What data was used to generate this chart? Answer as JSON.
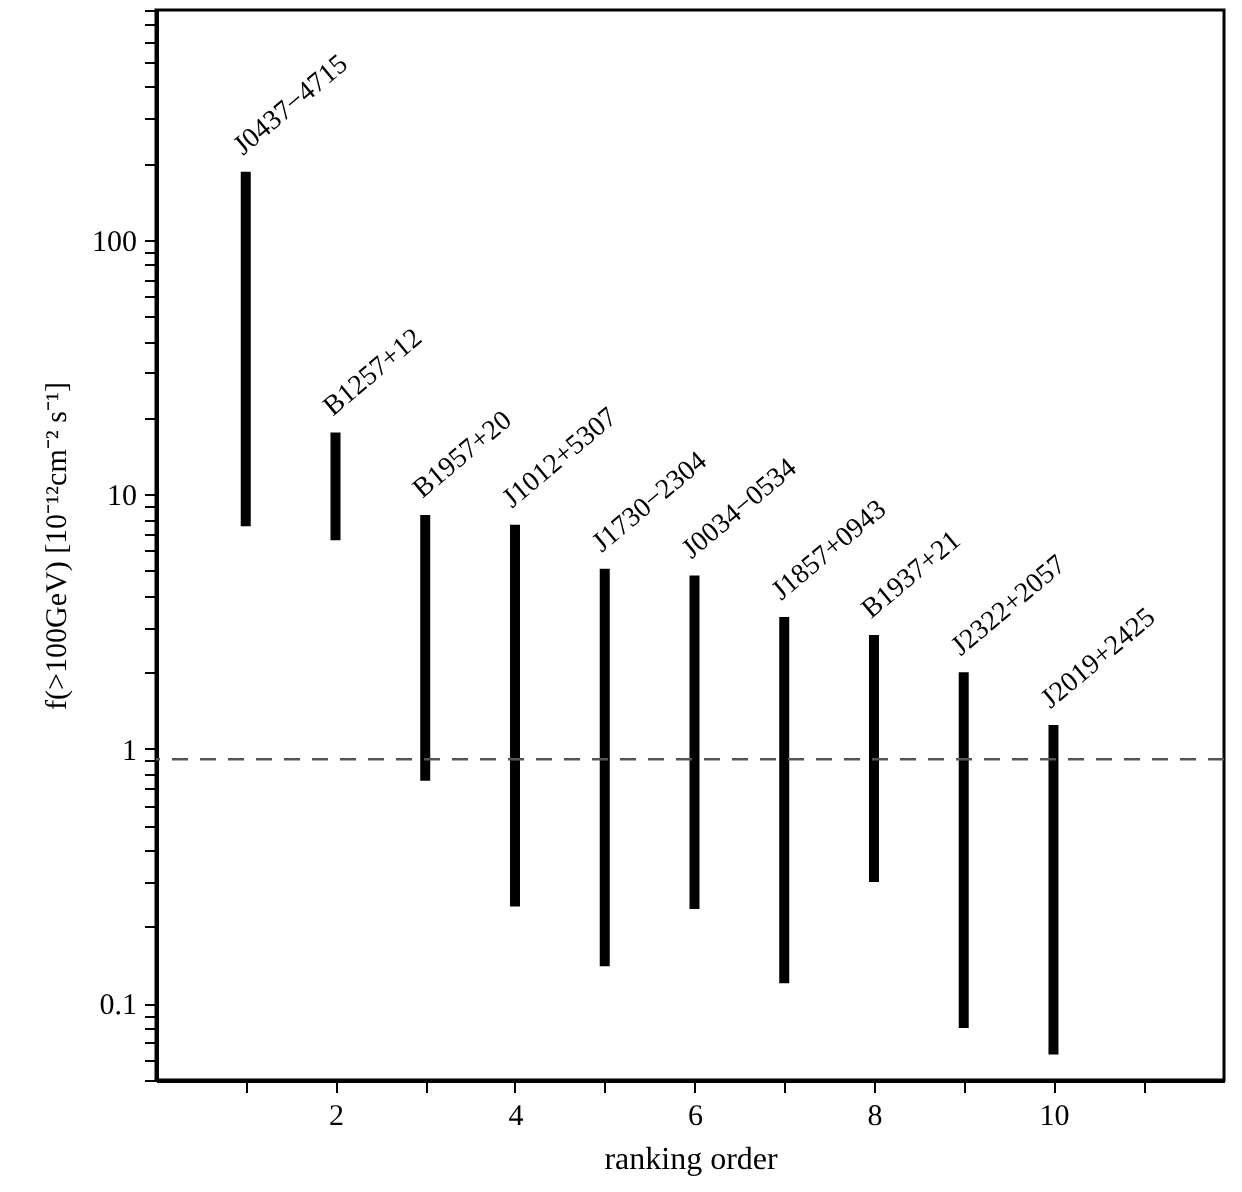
{
  "chart_data": {
    "type": "bar",
    "xlabel": "ranking order",
    "ylabel": "f(>100GeV) [10⁻¹²cm⁻² s⁻¹]",
    "x": [
      1,
      2,
      3,
      4,
      5,
      6,
      7,
      8,
      9,
      10
    ],
    "base": [
      7.5,
      6.6,
      0.75,
      0.24,
      0.14,
      0.235,
      0.12,
      0.3,
      0.08,
      0.063
    ],
    "values": [
      177.5,
      10.9,
      7.55,
      7.36,
      4.96,
      4.565,
      3.18,
      2.5,
      1.92,
      1.177
    ],
    "color": "#000000",
    "log": true,
    "xlim": [
      0,
      11.9
    ],
    "xticks": [
      {
        "value": 1,
        "label": null
      },
      2,
      {
        "value": 3,
        "label": null
      },
      4,
      {
        "value": 5,
        "label": null
      },
      6,
      {
        "value": 7,
        "label": null
      },
      8,
      {
        "value": 9,
        "label": null
      },
      10,
      {
        "value": 11,
        "label": null
      }
    ],
    "ylim": [
      0.05,
      800
    ],
    "yticks": [
      {
        "value": 0.05,
        "label": null
      },
      {
        "value": 0.06,
        "label": null
      },
      {
        "value": 0.07,
        "label": null
      },
      {
        "value": 0.08,
        "label": null
      },
      {
        "value": 0.09,
        "label": null
      },
      0.1,
      {
        "value": 0.2,
        "label": null
      },
      {
        "value": 0.3,
        "label": null
      },
      {
        "value": 0.4,
        "label": null
      },
      {
        "value": 0.5,
        "label": null
      },
      {
        "value": 0.6,
        "label": null
      },
      {
        "value": 0.7,
        "label": null
      },
      {
        "value": 0.8,
        "label": null
      },
      {
        "value": 0.9,
        "label": null
      },
      1,
      {
        "value": 2,
        "label": null
      },
      {
        "value": 3,
        "label": null
      },
      {
        "value": 4,
        "label": null
      },
      {
        "value": 5,
        "label": null
      },
      {
        "value": 6,
        "label": null
      },
      {
        "value": 7,
        "label": null
      },
      {
        "value": 8,
        "label": null
      },
      {
        "value": 9,
        "label": null
      },
      10,
      {
        "value": 20,
        "label": null
      },
      {
        "value": 30,
        "label": null
      },
      {
        "value": 40,
        "label": null
      },
      {
        "value": 50,
        "label": null
      },
      {
        "value": 60,
        "label": null
      },
      {
        "value": 70,
        "label": null
      },
      {
        "value": 80,
        "label": null
      },
      {
        "value": 90,
        "label": null
      },
      100,
      {
        "value": 200,
        "label": null
      },
      {
        "value": 300,
        "label": null
      },
      {
        "value": 400,
        "label": null
      },
      {
        "value": 500,
        "label": null
      },
      {
        "value": 600,
        "label": null
      },
      {
        "value": 700,
        "label": null
      },
      {
        "value": 800,
        "label": null
      }
    ],
    "ref_lines": [
      {
        "axis": "y",
        "value": 0.91,
        "color": "#555555",
        "line_style": "dashed"
      }
    ],
    "annotations": [
      {
        "text": "J0437−4715",
        "x": 1,
        "y": 185
      },
      {
        "text": "B1257+12",
        "x": 2,
        "y": 17.5
      },
      {
        "text": "B1957+20",
        "x": 3,
        "y": 8.3
      },
      {
        "text": "J1012+5307",
        "x": 4,
        "y": 7.6
      },
      {
        "text": "J1730−2304",
        "x": 5,
        "y": 5.1
      },
      {
        "text": "J0034−0534",
        "x": 6,
        "y": 4.8
      },
      {
        "text": "J1857+0943",
        "x": 7,
        "y": 3.3
      },
      {
        "text": "B1937+21",
        "x": 8,
        "y": 2.8
      },
      {
        "text": "J2322+2057",
        "x": 9,
        "y": 2.0
      },
      {
        "text": "J2019+2425",
        "x": 10,
        "y": 1.24
      }
    ]
  }
}
